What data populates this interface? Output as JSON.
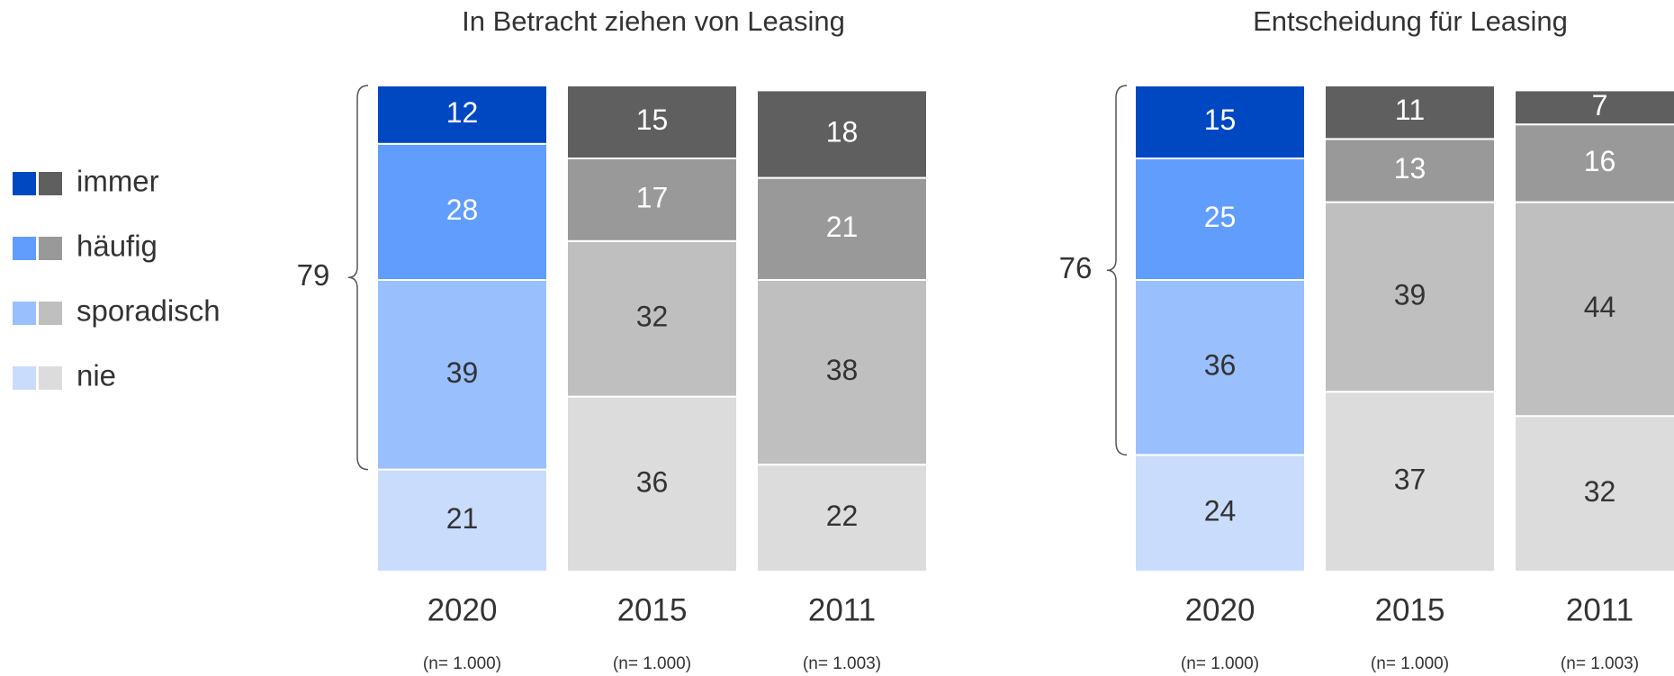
{
  "chart_data": [
    {
      "type": "stacked_bar",
      "title": "In Betracht ziehen von Leasing",
      "categories": [
        "2020",
        "2015",
        "2011"
      ],
      "sample_sizes": [
        "(n= 1.000)",
        "(n= 1.000)",
        "(n= 1.003)"
      ],
      "ylim": [
        0,
        100
      ],
      "brace_value": 79,
      "series": [
        {
          "name": "nie",
          "colors": [
            "#cadcfc",
            "#dcdcdc",
            "#dcdcdc"
          ],
          "label_color": "#333333",
          "values": [
            21,
            36,
            22
          ]
        },
        {
          "name": "sporadisch",
          "colors": [
            "#99bffc",
            "#bfbfbf",
            "#bfbfbf"
          ],
          "label_color": "#333333",
          "values": [
            39,
            32,
            38
          ]
        },
        {
          "name": "häufig",
          "colors": [
            "#609dfc",
            "#999999",
            "#999999"
          ],
          "label_color": "#ffffff",
          "values": [
            28,
            17,
            21
          ]
        },
        {
          "name": "immer",
          "colors": [
            "#0047c2",
            "#5f5f5f",
            "#5f5f5f"
          ],
          "label_color": "#ffffff",
          "values": [
            12,
            15,
            18
          ]
        }
      ]
    },
    {
      "type": "stacked_bar",
      "title": "Entscheidung für Leasing",
      "categories": [
        "2020",
        "2015",
        "2011"
      ],
      "sample_sizes": [
        "(n= 1.000)",
        "(n= 1.000)",
        "(n= 1.003)"
      ],
      "ylim": [
        0,
        100
      ],
      "brace_value": 76,
      "series": [
        {
          "name": "nie",
          "colors": [
            "#cadcfc",
            "#dcdcdc",
            "#dcdcdc"
          ],
          "label_color": "#333333",
          "values": [
            24,
            37,
            32
          ]
        },
        {
          "name": "sporadisch",
          "colors": [
            "#99bffc",
            "#bfbfbf",
            "#bfbfbf"
          ],
          "label_color": "#333333",
          "values": [
            36,
            39,
            44
          ]
        },
        {
          "name": "häufig",
          "colors": [
            "#609dfc",
            "#999999",
            "#999999"
          ],
          "label_color": "#ffffff",
          "values": [
            25,
            13,
            16
          ]
        },
        {
          "name": "immer",
          "colors": [
            "#0047c2",
            "#5f5f5f",
            "#5f5f5f"
          ],
          "label_color": "#ffffff",
          "values": [
            15,
            11,
            7
          ]
        }
      ]
    }
  ]
}
